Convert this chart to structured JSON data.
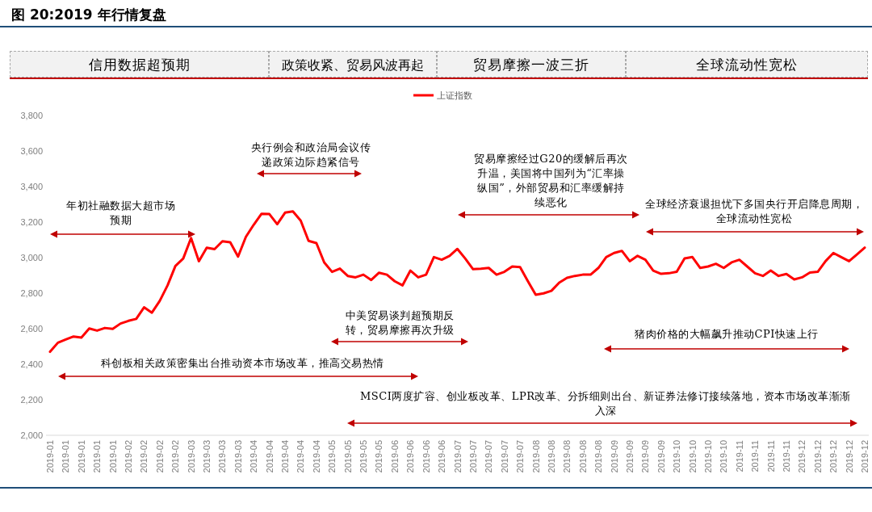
{
  "chart_data": {
    "type": "line",
    "title": "图 20:2019 年行情复盘",
    "categories": [
      "2019-01",
      null,
      "2019-01",
      null,
      "2019-01",
      null,
      "2019-01",
      null,
      "2019-01",
      null,
      "2019-02",
      null,
      "2019-02",
      null,
      "2019-02",
      null,
      "2019-02",
      null,
      "2019-03",
      null,
      "2019-03",
      null,
      "2019-03",
      null,
      "2019-03",
      null,
      "2019-04",
      null,
      "2019-04",
      null,
      "2019-04",
      null,
      "2019-04",
      null,
      "2019-04",
      null,
      "2019-05",
      null,
      "2019-05",
      null,
      "2019-05",
      null,
      "2019-05",
      null,
      "2019-06",
      null,
      "2019-06",
      null,
      "2019-06",
      null,
      "2019-06",
      null,
      "2019-07",
      null,
      "2019-07",
      null,
      "2019-07",
      null,
      "2019-07",
      null,
      "2019-07",
      null,
      "2019-08",
      null,
      "2019-08",
      null,
      "2019-08",
      null,
      "2019-08",
      null,
      "2019-08",
      null,
      "2019-09",
      null,
      "2019-09",
      null,
      "2019-09",
      null,
      "2019-09",
      null,
      "2019-10",
      null,
      "2019-10",
      null,
      "2019-10",
      null,
      "2019-10",
      null,
      "2019-11",
      null,
      "2019-11",
      null,
      "2019-11",
      null,
      "2019-11",
      null,
      "2019-12",
      null,
      "2019-12",
      null,
      "2019-12",
      null,
      "2019-12",
      null,
      "2019-12"
    ],
    "series": [
      {
        "name": "上证指数",
        "color": "#ff0000",
        "values": [
          2470,
          2521,
          2539,
          2556,
          2550,
          2601,
          2589,
          2604,
          2599,
          2629,
          2644,
          2655,
          2720,
          2690,
          2756,
          2844,
          2953,
          2995,
          3110,
          2980,
          3056,
          3048,
          3092,
          3086,
          3006,
          3117,
          3185,
          3247,
          3245,
          3188,
          3253,
          3260,
          3208,
          3094,
          3082,
          2973,
          2920,
          2938,
          2897,
          2889,
          2904,
          2874,
          2915,
          2904,
          2867,
          2844,
          2927,
          2889,
          2904,
          3003,
          2988,
          3010,
          3049,
          2995,
          2935,
          2938,
          2942,
          2904,
          2920,
          2950,
          2947,
          2867,
          2791,
          2799,
          2813,
          2859,
          2886,
          2897,
          2904,
          2904,
          2942,
          3003,
          3026,
          3038,
          2980,
          3010,
          2988,
          2927,
          2909,
          2912,
          2920,
          2995,
          3003,
          2942,
          2950,
          2965,
          2942,
          2973,
          2988,
          2950,
          2912,
          2897,
          2927,
          2897,
          2908,
          2877,
          2889,
          2916,
          2920,
          2980,
          3026,
          3003,
          2980,
          3018,
          3056
        ]
      }
    ],
    "ylim": [
      2000,
      3800
    ],
    "yticks": [
      {
        "value": 2000,
        "label": "2,000"
      },
      {
        "value": 2200,
        "label": "2,200"
      },
      {
        "value": 2400,
        "label": "2,400"
      },
      {
        "value": 2600,
        "label": "2,600"
      },
      {
        "value": 2800,
        "label": "2,800"
      },
      {
        "value": 3000,
        "label": "3,000"
      },
      {
        "value": 3200,
        "label": "3,200"
      },
      {
        "value": 3400,
        "label": "3,400"
      },
      {
        "value": 3600,
        "label": "3,600"
      },
      {
        "value": 3800,
        "label": "3,800"
      }
    ],
    "legend": "top",
    "grid": false,
    "marker": "none",
    "line_style": "solid",
    "annotations": [
      "信用数据超预期",
      "政策收紧、贸易风波再起",
      "贸易摩擦一波三折",
      "全球流动性宽松",
      "年初社融数据大超市场预期",
      "央行例会和政治局会议传递政策边际趋紧信号",
      "贸易摩擦经过G20的缓解后再次升温，美国将中国列为“汇率操纵国”，外部贸易和汇率缓解持续恶化",
      "全球经济衰退担忧下多国央行开启降息周期，全球流动性宽松",
      "中美贸易谈判超预期反转，贸易摩擦再次升级",
      "科创板相关政策密集出台推动资本市场改革，推高交易热情",
      "猪肉价格的大幅飙升推动CPI快速上行",
      "MSCI两度扩容、创业板改革、LPR改革、分拆细则出台、新证券法修订接续落地，资本市场改革渐渐入深"
    ]
  }
}
